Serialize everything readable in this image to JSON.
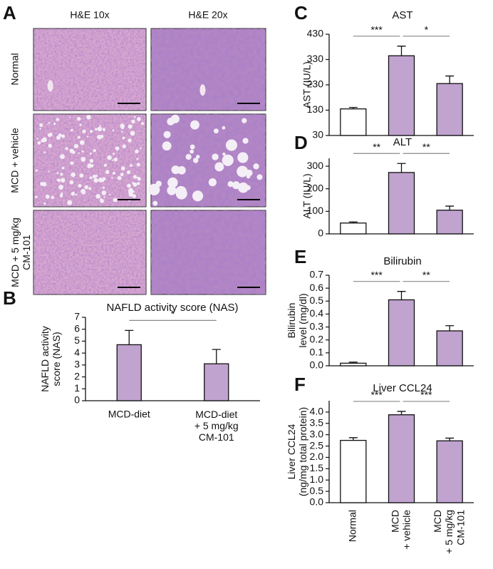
{
  "histology": {
    "letter": "A",
    "columns": [
      "H&E 10x",
      "H&E 20x"
    ],
    "rows": [
      "Normal",
      "MCD + vehicle",
      "MCD + 5 mg/kg\nCM-101"
    ]
  },
  "chart_data": [
    {
      "type": "bar",
      "letter": "B",
      "title": "NAFLD activity score (NAS)",
      "ylabel": "NAFLD activity\nscore (NAS)",
      "categories": [
        "MCD-diet",
        "MCD-diet\n+ 5 mg/kg\nCM-101"
      ],
      "values": [
        4.7,
        3.1
      ],
      "errors": [
        1.2,
        1.2
      ],
      "colors": [
        "#c0a3cf",
        "#c0a3cf"
      ],
      "ylim": [
        0,
        7
      ],
      "yticks": [
        0,
        1,
        2,
        3,
        4,
        5,
        6,
        7
      ],
      "significance": [
        {
          "label": "*",
          "bars": [
            0,
            1
          ]
        }
      ]
    },
    {
      "type": "bar",
      "letter": "C",
      "title": "AST",
      "ylabel": "AST (IU/L)",
      "categories": [
        null,
        null,
        null
      ],
      "values": [
        135,
        345,
        235
      ],
      "errors": [
        6,
        38,
        30
      ],
      "colors": [
        "#ffffff",
        "#c0a3cf",
        "#c0a3cf"
      ],
      "ylim": [
        30,
        430
      ],
      "yticks": [
        30,
        130,
        230,
        330,
        430
      ],
      "significance": [
        {
          "label": "***",
          "bars": [
            0,
            1
          ]
        },
        {
          "label": "*",
          "bars": [
            1,
            2
          ]
        }
      ]
    },
    {
      "type": "bar",
      "letter": "D",
      "title": "ALT",
      "ylabel": "ALT (IU/L)",
      "categories": [
        null,
        null,
        null
      ],
      "values": [
        48,
        272,
        105
      ],
      "errors": [
        5,
        40,
        18
      ],
      "colors": [
        "#ffffff",
        "#c0a3cf",
        "#c0a3cf"
      ],
      "ylim": [
        0,
        335
      ],
      "yticks": [
        0,
        100,
        200,
        300
      ],
      "significance": [
        {
          "label": "**",
          "bars": [
            0,
            1
          ]
        },
        {
          "label": "**",
          "bars": [
            1,
            2
          ]
        }
      ]
    },
    {
      "type": "bar",
      "letter": "E",
      "title": "Bilirubin",
      "ylabel": "Bilirubin\nlevel (mg/dl)",
      "categories": [
        null,
        null,
        null
      ],
      "values": [
        0.02,
        0.51,
        0.27
      ],
      "errors": [
        0.008,
        0.065,
        0.04
      ],
      "colors": [
        "#ffffff",
        "#c0a3cf",
        "#c0a3cf"
      ],
      "ylim": [
        0,
        0.7
      ],
      "yticks": [
        {
          "value": 0,
          "label": "0.0"
        },
        0.1,
        0.2,
        0.3,
        0.4,
        0.5,
        0.6,
        0.7
      ],
      "significance": [
        {
          "label": "***",
          "bars": [
            0,
            1
          ]
        },
        {
          "label": "**",
          "bars": [
            1,
            2
          ]
        }
      ]
    },
    {
      "type": "bar",
      "letter": "F",
      "title": "Liver CCL24",
      "ylabel": "Liver CCL24\n(ng/mg total protein)",
      "categories": [
        "Normal",
        "MCD\n+ vehicle",
        "MCD\n+ 5 mg/kg\nCM-101"
      ],
      "values": [
        2.75,
        3.88,
        2.73
      ],
      "errors": [
        0.12,
        0.15,
        0.12
      ],
      "colors": [
        "#ffffff",
        "#c0a3cf",
        "#c0a3cf"
      ],
      "ylim": [
        0,
        4.5
      ],
      "yticks": [
        {
          "value": 0,
          "label": "0.0"
        },
        0.5,
        {
          "value": 1,
          "label": "1.0"
        },
        1.5,
        {
          "value": 2,
          "label": "2.0"
        },
        2.5,
        {
          "value": 3,
          "label": "3.0"
        },
        3.5,
        {
          "value": 4,
          "label": "4.0"
        }
      ],
      "significance": [
        {
          "label": "***",
          "bars": [
            0,
            1
          ]
        },
        {
          "label": "***",
          "bars": [
            1,
            2
          ]
        }
      ]
    }
  ]
}
